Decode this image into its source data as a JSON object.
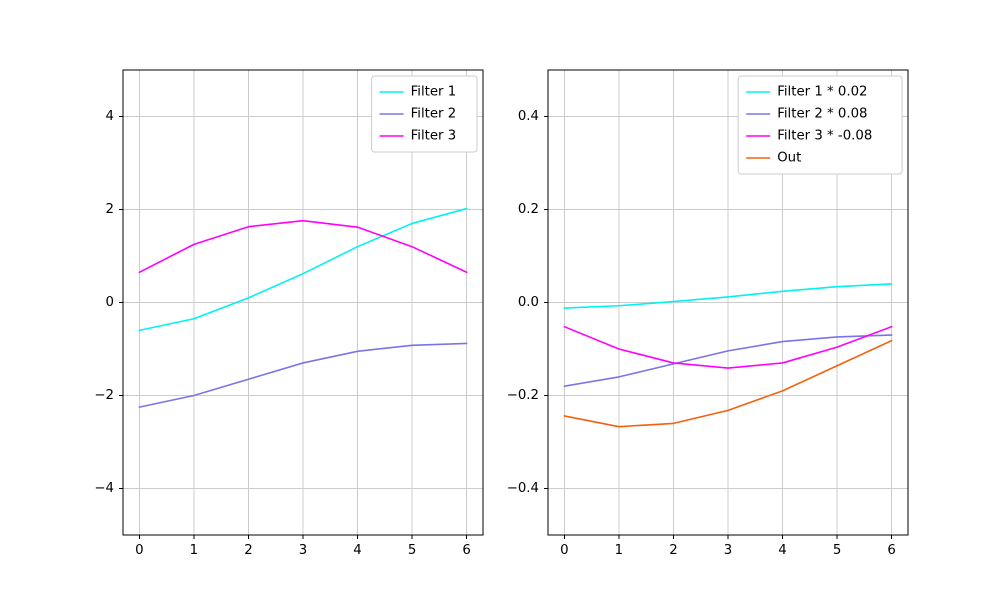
{
  "figure": {
    "background": "#ffffff"
  },
  "chart_data": [
    {
      "type": "line",
      "title": "",
      "xlabel": "",
      "ylabel": "",
      "grid": true,
      "legend_position": "upper right",
      "x": [
        0,
        1,
        2,
        3,
        4,
        5,
        6
      ],
      "xlim": [
        -0.3,
        6.3
      ],
      "ylim": [
        -5,
        5
      ],
      "xticks": {
        "values": [
          0,
          1,
          2,
          3,
          4,
          5,
          6
        ],
        "labels": [
          "0",
          "1",
          "2",
          "3",
          "4",
          "5",
          "6"
        ]
      },
      "yticks": {
        "values": [
          -4,
          -2,
          0,
          2,
          4
        ],
        "labels": [
          "−4",
          "−2",
          "0",
          "2",
          "4"
        ]
      },
      "series": [
        {
          "name": "Filter 1",
          "color": "#00f2f2",
          "values": [
            -0.6,
            -0.35,
            0.1,
            0.62,
            1.2,
            1.7,
            2.02
          ]
        },
        {
          "name": "Filter 2",
          "color": "#7b74e8",
          "values": [
            -2.25,
            -2.0,
            -1.65,
            -1.3,
            -1.05,
            -0.92,
            -0.88
          ]
        },
        {
          "name": "Filter 3",
          "color": "#ff00ff",
          "values": [
            0.65,
            1.25,
            1.63,
            1.76,
            1.62,
            1.2,
            0.65
          ]
        }
      ]
    },
    {
      "type": "line",
      "title": "",
      "xlabel": "",
      "ylabel": "",
      "grid": true,
      "legend_position": "upper right",
      "x": [
        0,
        1,
        2,
        3,
        4,
        5,
        6
      ],
      "xlim": [
        -0.3,
        6.3
      ],
      "ylim": [
        -0.5,
        0.5
      ],
      "xticks": {
        "values": [
          0,
          1,
          2,
          3,
          4,
          5,
          6
        ],
        "labels": [
          "0",
          "1",
          "2",
          "3",
          "4",
          "5",
          "6"
        ]
      },
      "yticks": {
        "values": [
          -0.4,
          -0.2,
          0.0,
          0.2,
          0.4
        ],
        "labels": [
          "−0.4",
          "−0.2",
          "0.0",
          "0.2",
          "0.4"
        ]
      },
      "series": [
        {
          "name": "Filter 1 * 0.02",
          "color": "#00f2f2",
          "values": [
            -0.012,
            -0.007,
            0.002,
            0.012,
            0.024,
            0.034,
            0.04
          ]
        },
        {
          "name": "Filter 2 * 0.08",
          "color": "#7b74e8",
          "values": [
            -0.18,
            -0.16,
            -0.132,
            -0.104,
            -0.084,
            -0.074,
            -0.07
          ]
        },
        {
          "name": "Filter 3 * -0.08",
          "color": "#ff00ff",
          "values": [
            -0.052,
            -0.1,
            -0.13,
            -0.141,
            -0.13,
            -0.096,
            -0.052
          ]
        },
        {
          "name": "Out",
          "color": "#f4610c",
          "values": [
            -0.244,
            -0.267,
            -0.26,
            -0.232,
            -0.19,
            -0.136,
            -0.082
          ]
        }
      ]
    }
  ]
}
